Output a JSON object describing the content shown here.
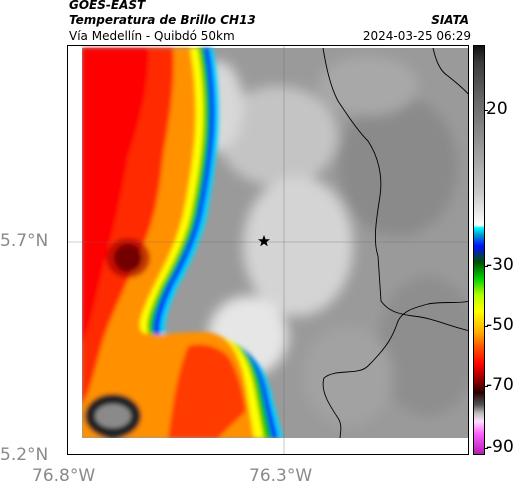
{
  "header": {
    "source": "GOES-EAST",
    "product": "Temperatura de Brillo CH13",
    "route": "Vía Medellín - Quibdó 50km",
    "agency": "SIATA",
    "timestamp": "2024-03-25 06:29"
  },
  "axes": {
    "lat_ticks": [
      "5.7°N",
      "5.2°N"
    ],
    "lon_ticks": [
      "76.8°W",
      "76.3°W"
    ]
  },
  "colorbar": {
    "ticks": [
      "20",
      "-30",
      "-50",
      "-70",
      "-90"
    ],
    "range": [
      -90,
      35
    ]
  },
  "marker": {
    "icon": "star-icon"
  }
}
